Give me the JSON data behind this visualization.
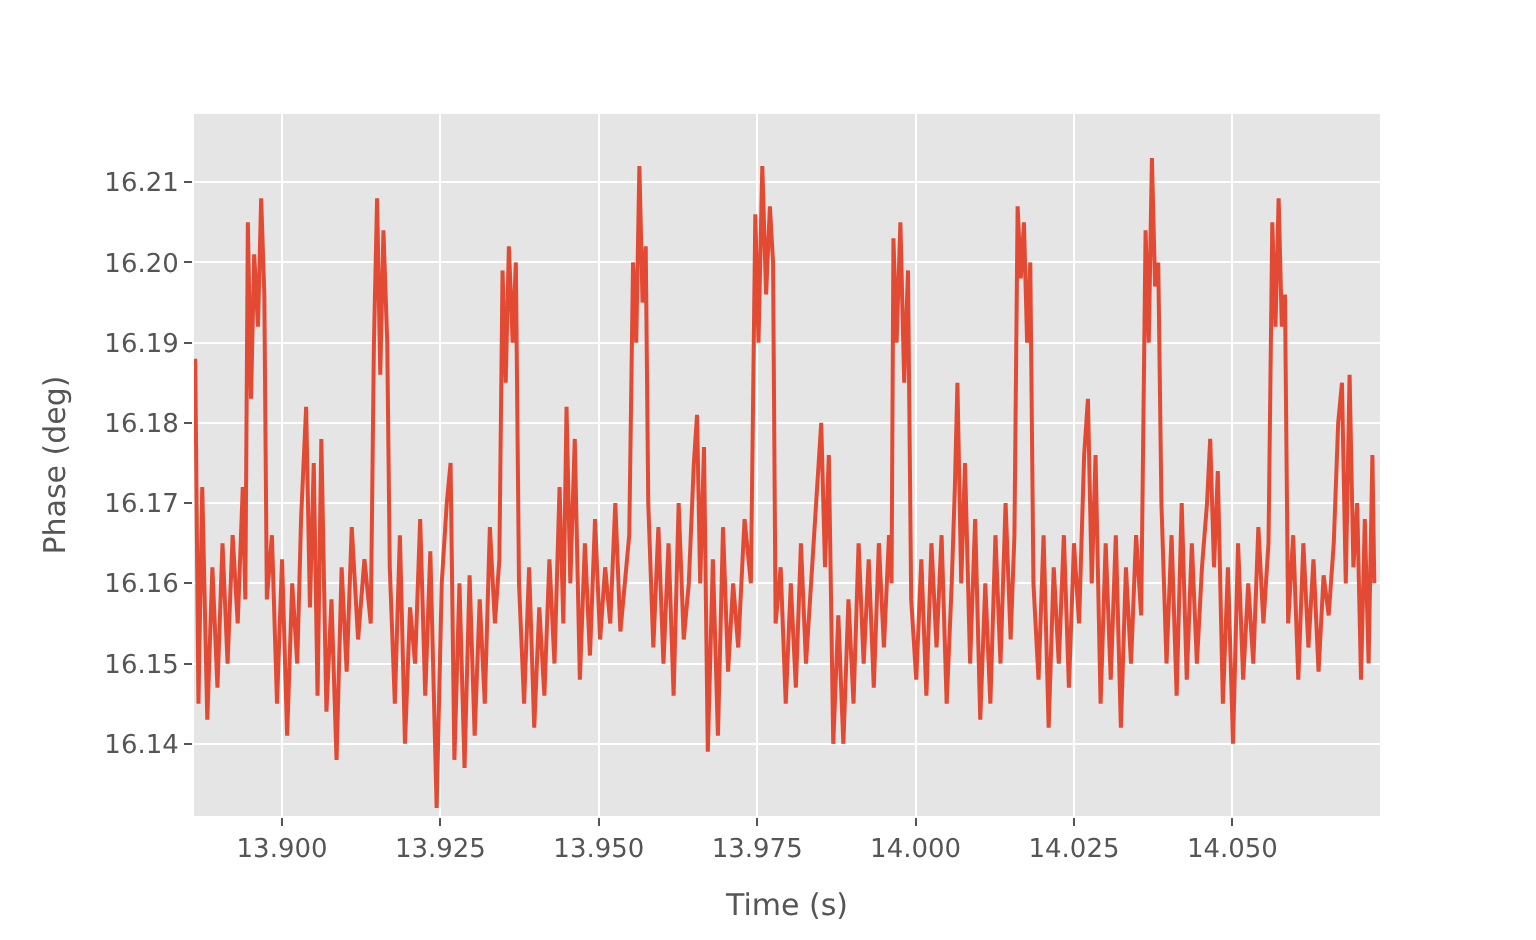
{
  "chart_data": {
    "type": "line",
    "xlabel": "Time (s)",
    "ylabel": "Phase (deg)",
    "xlim": [
      13.8861,
      14.0733
    ],
    "ylim": [
      16.131,
      16.2185
    ],
    "xticks": [
      {
        "value": 13.9,
        "label": "13.900"
      },
      {
        "value": 13.925,
        "label": "13.925"
      },
      {
        "value": 13.95,
        "label": "13.950"
      },
      {
        "value": 13.975,
        "label": "13.975"
      },
      {
        "value": 14.0,
        "label": "14.000"
      },
      {
        "value": 14.025,
        "label": "14.025"
      },
      {
        "value": 14.05,
        "label": "14.050"
      }
    ],
    "yticks": [
      16.14,
      16.15,
      16.16,
      16.17,
      16.18,
      16.19,
      {
        "value": 16.2,
        "label": "16.20"
      },
      16.21
    ],
    "grid": true,
    "x": [
      13.8863,
      13.8868,
      13.8874,
      13.8882,
      13.889,
      13.8898,
      13.8906,
      13.8914,
      13.8922,
      13.893,
      13.8938,
      13.8942,
      13.8946,
      13.8951,
      13.8956,
      13.8962,
      13.8967,
      13.8972,
      13.8976,
      13.8984,
      13.8992,
      13.9,
      13.9008,
      13.9016,
      13.9024,
      13.903,
      13.9038,
      13.9044,
      13.905,
      13.9056,
      13.9062,
      13.907,
      13.9078,
      13.9086,
      13.9094,
      13.9102,
      13.911,
      13.912,
      13.913,
      13.914,
      13.9145,
      13.915,
      13.9155,
      13.916,
      13.9166,
      13.917,
      13.9178,
      13.9186,
      13.9194,
      13.9202,
      13.921,
      13.9218,
      13.9226,
      13.9234,
      13.9244,
      13.9252,
      13.926,
      13.9266,
      13.9272,
      13.928,
      13.9288,
      13.9296,
      13.9304,
      13.9312,
      13.932,
      13.9328,
      13.9336,
      13.9343,
      13.9348,
      13.9353,
      13.9358,
      13.9364,
      13.9369,
      13.9374,
      13.9382,
      13.939,
      13.9398,
      13.9406,
      13.9414,
      13.9422,
      13.943,
      13.9438,
      13.9444,
      13.9449,
      13.9455,
      13.9462,
      13.947,
      13.9478,
      13.9486,
      13.9494,
      13.9502,
      13.951,
      13.9518,
      13.9526,
      13.9534,
      13.9548,
      13.9554,
      13.9559,
      13.9564,
      13.9569,
      13.9574,
      13.9578,
      13.9586,
      13.9594,
      13.9602,
      13.961,
      13.9618,
      13.9626,
      13.9634,
      13.9642,
      13.965,
      13.9655,
      13.966,
      13.9666,
      13.9672,
      13.968,
      13.9688,
      13.9696,
      13.9704,
      13.9712,
      13.972,
      13.973,
      13.974,
      13.9747,
      13.9752,
      13.9758,
      13.9764,
      13.977,
      13.9775,
      13.9779,
      13.9787,
      13.9795,
      13.9803,
      13.9811,
      13.9819,
      13.9827,
      13.9835,
      13.9843,
      13.9851,
      13.9857,
      13.9863,
      13.987,
      13.9878,
      13.9886,
      13.9894,
      13.9902,
      13.991,
      13.9918,
      13.9926,
      13.9934,
      13.9942,
      13.995,
      13.9958,
      13.9962,
      13.9965,
      13.997,
      13.9976,
      13.9982,
      13.9988,
      13.9993,
      14.0001,
      14.0009,
      14.0017,
      14.0025,
      14.0033,
      14.0041,
      14.0049,
      14.0057,
      14.0062,
      14.0066,
      14.0072,
      14.0078,
      14.0086,
      14.0094,
      14.0102,
      14.011,
      14.0118,
      14.0126,
      14.0134,
      14.0142,
      14.015,
      14.0156,
      14.0161,
      14.0166,
      14.0171,
      14.0176,
      14.0181,
      14.0186,
      14.0194,
      14.0202,
      14.021,
      14.0218,
      14.0226,
      14.0234,
      14.0242,
      14.025,
      14.0258,
      14.0266,
      14.0272,
      14.0278,
      14.0284,
      14.0292,
      14.03,
      14.0308,
      14.0316,
      14.0324,
      14.0332,
      14.034,
      14.0348,
      14.0356,
      14.0363,
      14.0368,
      14.0373,
      14.0378,
      14.0383,
      14.0388,
      14.0396,
      14.0404,
      14.0412,
      14.042,
      14.0428,
      14.0436,
      14.0444,
      14.0452,
      14.046,
      14.0465,
      14.0471,
      14.0477,
      14.0485,
      14.0493,
      14.0501,
      14.0509,
      14.0517,
      14.0525,
      14.0533,
      14.0541,
      14.0549,
      14.0557,
      14.0563,
      14.0568,
      14.0573,
      14.0578,
      14.0583,
      14.0588,
      14.0596,
      14.0604,
      14.0612,
      14.062,
      14.0628,
      14.0636,
      14.0644,
      14.0652,
      14.066,
      14.0667,
      14.0673,
      14.0679,
      14.0685,
      14.0691,
      14.0697,
      14.0703,
      14.0709,
      14.0715,
      14.0721,
      14.0724
    ],
    "series": [
      {
        "color": "#e24a33",
        "values": [
          16.188,
          16.145,
          16.172,
          16.143,
          16.162,
          16.147,
          16.165,
          16.15,
          16.166,
          16.155,
          16.172,
          16.158,
          16.205,
          16.183,
          16.201,
          16.192,
          16.208,
          16.196,
          16.158,
          16.166,
          16.145,
          16.163,
          16.141,
          16.16,
          16.15,
          16.168,
          16.182,
          16.157,
          16.175,
          16.146,
          16.178,
          16.144,
          16.158,
          16.138,
          16.162,
          16.149,
          16.167,
          16.153,
          16.163,
          16.155,
          16.19,
          16.208,
          16.186,
          16.204,
          16.19,
          16.162,
          16.145,
          16.166,
          16.14,
          16.157,
          16.15,
          16.168,
          16.146,
          16.164,
          16.132,
          16.16,
          16.17,
          16.175,
          16.138,
          16.16,
          16.137,
          16.161,
          16.141,
          16.158,
          16.145,
          16.167,
          16.155,
          16.163,
          16.199,
          16.185,
          16.202,
          16.19,
          16.2,
          16.16,
          16.145,
          16.162,
          16.142,
          16.157,
          16.146,
          16.163,
          16.15,
          16.172,
          16.155,
          16.182,
          16.16,
          16.178,
          16.148,
          16.165,
          16.151,
          16.168,
          16.153,
          16.162,
          16.155,
          16.17,
          16.154,
          16.166,
          16.2,
          16.19,
          16.212,
          16.195,
          16.202,
          16.17,
          16.152,
          16.167,
          16.15,
          16.165,
          16.146,
          16.17,
          16.153,
          16.16,
          16.175,
          16.181,
          16.16,
          16.177,
          16.139,
          16.163,
          16.141,
          16.167,
          16.149,
          16.16,
          16.152,
          16.168,
          16.16,
          16.206,
          16.19,
          16.212,
          16.196,
          16.207,
          16.2,
          16.155,
          16.162,
          16.145,
          16.16,
          16.147,
          16.165,
          16.15,
          16.16,
          16.17,
          16.18,
          16.162,
          16.176,
          16.14,
          16.156,
          16.14,
          16.158,
          16.145,
          16.165,
          16.15,
          16.163,
          16.147,
          16.165,
          16.152,
          16.166,
          16.16,
          16.203,
          16.19,
          16.205,
          16.185,
          16.199,
          16.158,
          16.148,
          16.163,
          16.146,
          16.165,
          16.152,
          16.166,
          16.145,
          16.16,
          16.172,
          16.185,
          16.16,
          16.175,
          16.15,
          16.168,
          16.143,
          16.16,
          16.145,
          16.166,
          16.15,
          16.17,
          16.153,
          16.166,
          16.207,
          16.198,
          16.205,
          16.19,
          16.2,
          16.16,
          16.148,
          16.166,
          16.142,
          16.162,
          16.15,
          16.166,
          16.147,
          16.165,
          16.155,
          16.176,
          16.183,
          16.16,
          16.176,
          16.145,
          16.165,
          16.148,
          16.166,
          16.142,
          16.162,
          16.15,
          16.166,
          16.156,
          16.204,
          16.19,
          16.213,
          16.197,
          16.2,
          16.17,
          16.15,
          16.166,
          16.146,
          16.17,
          16.148,
          16.165,
          16.15,
          16.162,
          16.17,
          16.178,
          16.162,
          16.174,
          16.145,
          16.162,
          16.14,
          16.165,
          16.148,
          16.16,
          16.15,
          16.167,
          16.155,
          16.165,
          16.205,
          16.192,
          16.208,
          16.192,
          16.196,
          16.155,
          16.166,
          16.148,
          16.165,
          16.152,
          16.163,
          16.149,
          16.161,
          16.156,
          16.165,
          16.18,
          16.185,
          16.16,
          16.186,
          16.162,
          16.17,
          16.148,
          16.168,
          16.15,
          16.176,
          16.16
        ]
      }
    ]
  }
}
